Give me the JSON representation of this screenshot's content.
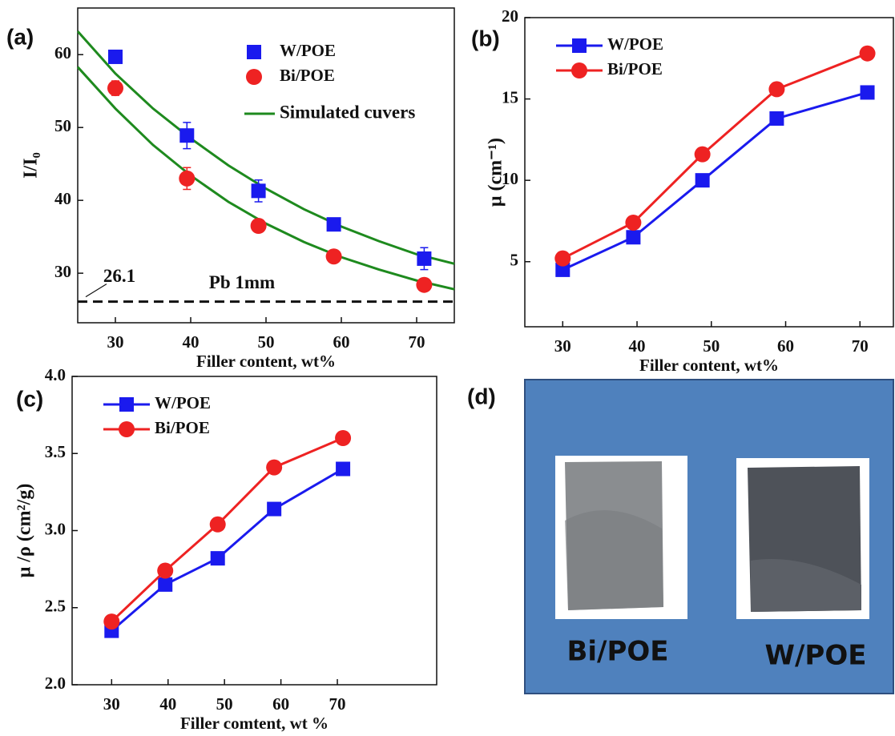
{
  "chart_data": [
    {
      "type": "scatter",
      "label": "(a)",
      "xlabel": "Filler content, wt%",
      "ylabel": "I/I₀",
      "xlim": [
        25,
        75
      ],
      "xticks": [
        30,
        40,
        50,
        60,
        70
      ],
      "ylim": [
        23.2,
        66.4
      ],
      "yticks": [
        30,
        40,
        50,
        60
      ],
      "x": [
        30,
        39.5,
        49,
        59,
        71
      ],
      "legend": "upper right",
      "series": [
        {
          "name": "W/POE",
          "color": "#1a1aee",
          "marker": "square",
          "values": [
            59.7,
            48.9,
            41.3,
            36.7,
            32.0
          ],
          "errors": [
            0.7,
            1.8,
            1.5,
            0.6,
            1.5
          ]
        },
        {
          "name": "Bi/POE",
          "color": "#ee2222",
          "marker": "circle",
          "values": [
            55.4,
            43.0,
            36.5,
            32.3,
            28.4
          ],
          "errors": [
            1.0,
            1.5,
            0.5,
            0.5,
            0.5
          ]
        }
      ],
      "fit": {
        "name": "Simulated cuvers",
        "color": "#1e8a1e",
        "x": [
          25,
          30,
          35,
          40,
          45,
          50,
          55,
          60,
          65,
          70,
          75
        ],
        "lines": [
          [
            63.2,
            57.4,
            52.6,
            48.5,
            44.8,
            41.6,
            38.8,
            36.4,
            34.4,
            32.6,
            31.3
          ],
          [
            58.3,
            52.6,
            47.6,
            43.4,
            39.8,
            36.8,
            34.3,
            32.2,
            30.5,
            29.0,
            27.8
          ]
        ]
      },
      "reference": {
        "value": 26.1,
        "label": "Pb 1mm"
      }
    },
    {
      "type": "line",
      "label": "(b)",
      "xlabel": "Filler content, wt%",
      "ylabel": "μ (cm⁻¹)",
      "xlim": [
        24.9,
        74.5
      ],
      "xticks": [
        30,
        40,
        50,
        60,
        70
      ],
      "ylim": [
        1,
        20
      ],
      "yticks": [
        5,
        10,
        15,
        20
      ],
      "x": [
        30,
        39.5,
        48.8,
        58.8,
        71
      ],
      "legend": "upper left",
      "series": [
        {
          "name": "W/POE",
          "color": "#1a1aee",
          "marker": "square",
          "values": [
            4.5,
            6.5,
            10.0,
            13.8,
            15.4
          ]
        },
        {
          "name": "Bi/POE",
          "color": "#ee2222",
          "marker": "circle",
          "values": [
            5.2,
            7.4,
            11.6,
            15.6,
            17.8
          ]
        }
      ]
    },
    {
      "type": "line",
      "label": "(c)",
      "xlabel": "Filler comtent, wt %",
      "ylabel": "μ /ρ (cm²/g)",
      "xlim": [
        23,
        87.6
      ],
      "xticks": [
        30,
        40,
        50,
        60,
        70
      ],
      "ylim": [
        2,
        4
      ],
      "yticks": [
        {
          "value": 2,
          "label": "2.0"
        },
        {
          "value": 2.5,
          "label": "2.5"
        },
        {
          "value": 3,
          "label": "3.0"
        },
        {
          "value": 3.5,
          "label": "3.5"
        },
        {
          "value": 4,
          "label": "4.0"
        }
      ],
      "x": [
        30,
        39.5,
        48.8,
        58.8,
        71
      ],
      "legend": "upper left",
      "series": [
        {
          "name": "W/POE",
          "color": "#1a1aee",
          "marker": "square",
          "values": [
            2.35,
            2.65,
            2.82,
            3.14,
            3.4
          ]
        },
        {
          "name": "Bi/POE",
          "color": "#ee2222",
          "marker": "circle",
          "values": [
            2.41,
            2.74,
            3.04,
            3.41,
            3.6
          ]
        }
      ]
    }
  ],
  "photo": {
    "label": "(d)",
    "captions": [
      "Bi/POE",
      "W/POE"
    ]
  }
}
